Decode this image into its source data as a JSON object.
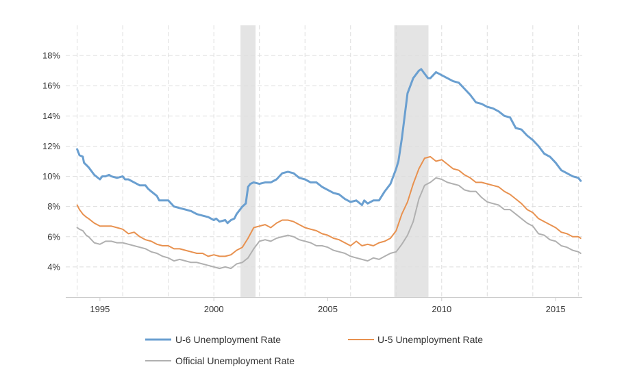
{
  "chart_data": {
    "type": "line",
    "title": "",
    "xlabel": "",
    "ylabel": "",
    "xlim": [
      1993.5,
      2016.17
    ],
    "ylim": [
      2,
      20
    ],
    "x_ticks": [
      1995,
      2000,
      2005,
      2010,
      2015
    ],
    "x_tick_labels": [
      "1995",
      "2000",
      "2005",
      "2010",
      "2015"
    ],
    "x_gridlines": [
      1994,
      1996,
      1998,
      2000,
      2002,
      2004,
      2006,
      2008,
      2010,
      2012,
      2014,
      2016
    ],
    "y_ticks": [
      4,
      6,
      8,
      10,
      12,
      14,
      16,
      18
    ],
    "y_tick_labels": [
      "4%",
      "6%",
      "8%",
      "10%",
      "12%",
      "14%",
      "16%",
      "18%"
    ],
    "y_gridlines": [
      4,
      6,
      8,
      10,
      12,
      14,
      16,
      18
    ],
    "grid": true,
    "grid_color": "#dddddd",
    "recession_color": "#e4e4e4",
    "recessions": [
      [
        2001.17,
        2001.83
      ],
      [
        2007.92,
        2009.42
      ]
    ],
    "legend_position": "bottom",
    "series": [
      {
        "name": "U-6 Unemployment Rate",
        "color": "#6a9fd0",
        "x": [
          1994.0,
          1994.1,
          1994.25,
          1994.3,
          1994.5,
          1994.75,
          1995.0,
          1995.1,
          1995.25,
          1995.4,
          1995.5,
          1995.75,
          1996.0,
          1996.1,
          1996.25,
          1996.5,
          1996.75,
          1997.0,
          1997.1,
          1997.25,
          1997.5,
          1997.6,
          1997.75,
          1998.0,
          1998.25,
          1998.5,
          1998.75,
          1999.0,
          1999.25,
          1999.5,
          1999.75,
          2000.0,
          2000.1,
          2000.25,
          2000.5,
          2000.6,
          2000.75,
          2000.9,
          2001.0,
          2001.25,
          2001.4,
          2001.5,
          2001.6,
          2001.75,
          2002.0,
          2002.25,
          2002.5,
          2002.75,
          2003.0,
          2003.25,
          2003.5,
          2003.75,
          2004.0,
          2004.25,
          2004.5,
          2004.75,
          2005.0,
          2005.25,
          2005.5,
          2005.75,
          2006.0,
          2006.25,
          2006.5,
          2006.6,
          2006.75,
          2007.0,
          2007.25,
          2007.5,
          2007.75,
          2008.0,
          2008.1,
          2008.25,
          2008.5,
          2008.75,
          2009.0,
          2009.1,
          2009.25,
          2009.4,
          2009.5,
          2009.75,
          2010.0,
          2010.25,
          2010.5,
          2010.75,
          2011.0,
          2011.25,
          2011.5,
          2011.75,
          2012.0,
          2012.25,
          2012.5,
          2012.75,
          2013.0,
          2013.25,
          2013.5,
          2013.75,
          2014.0,
          2014.25,
          2014.5,
          2014.75,
          2015.0,
          2015.25,
          2015.5,
          2015.75,
          2016.0,
          2016.1
        ],
        "values": [
          11.8,
          11.4,
          11.3,
          10.9,
          10.6,
          10.1,
          9.8,
          10.0,
          10.0,
          10.1,
          10.0,
          9.9,
          10.0,
          9.8,
          9.8,
          9.6,
          9.4,
          9.4,
          9.2,
          9.0,
          8.7,
          8.4,
          8.4,
          8.4,
          8.0,
          7.9,
          7.8,
          7.7,
          7.5,
          7.4,
          7.3,
          7.1,
          7.2,
          7.0,
          7.1,
          6.9,
          7.1,
          7.2,
          7.5,
          8.0,
          8.2,
          9.3,
          9.5,
          9.6,
          9.5,
          9.6,
          9.6,
          9.8,
          10.2,
          10.3,
          10.2,
          9.9,
          9.8,
          9.6,
          9.6,
          9.3,
          9.1,
          8.9,
          8.8,
          8.5,
          8.3,
          8.4,
          8.1,
          8.4,
          8.2,
          8.4,
          8.4,
          9.0,
          9.5,
          10.5,
          11.0,
          12.5,
          15.5,
          16.5,
          17.0,
          17.1,
          16.8,
          16.5,
          16.5,
          16.9,
          16.7,
          16.5,
          16.3,
          16.2,
          15.8,
          15.4,
          14.9,
          14.8,
          14.6,
          14.5,
          14.3,
          14.0,
          13.9,
          13.2,
          13.1,
          12.7,
          12.4,
          12.0,
          11.5,
          11.3,
          10.9,
          10.4,
          10.2,
          10.0,
          9.9,
          9.7
        ]
      },
      {
        "name": "U-5 Unemployment Rate",
        "color": "#e8914f",
        "x": [
          1994.0,
          1994.1,
          1994.25,
          1994.4,
          1994.5,
          1994.75,
          1995.0,
          1995.25,
          1995.5,
          1995.75,
          1996.0,
          1996.25,
          1996.5,
          1996.75,
          1997.0,
          1997.25,
          1997.5,
          1997.75,
          1998.0,
          1998.25,
          1998.5,
          1998.75,
          1999.0,
          1999.25,
          1999.5,
          1999.75,
          2000.0,
          2000.25,
          2000.5,
          2000.75,
          2001.0,
          2001.25,
          2001.5,
          2001.75,
          2002.0,
          2002.25,
          2002.5,
          2002.75,
          2003.0,
          2003.25,
          2003.5,
          2003.75,
          2004.0,
          2004.25,
          2004.5,
          2004.75,
          2005.0,
          2005.25,
          2005.5,
          2005.75,
          2006.0,
          2006.25,
          2006.5,
          2006.75,
          2007.0,
          2007.25,
          2007.5,
          2007.75,
          2008.0,
          2008.25,
          2008.5,
          2008.75,
          2009.0,
          2009.25,
          2009.5,
          2009.75,
          2010.0,
          2010.25,
          2010.5,
          2010.75,
          2011.0,
          2011.25,
          2011.5,
          2011.75,
          2012.0,
          2012.25,
          2012.5,
          2012.75,
          2013.0,
          2013.25,
          2013.5,
          2013.75,
          2014.0,
          2014.25,
          2014.5,
          2014.75,
          2015.0,
          2015.25,
          2015.5,
          2015.75,
          2016.0,
          2016.1
        ],
        "values": [
          8.1,
          7.8,
          7.5,
          7.3,
          7.2,
          6.9,
          6.7,
          6.7,
          6.7,
          6.6,
          6.5,
          6.2,
          6.3,
          6.0,
          5.8,
          5.7,
          5.5,
          5.4,
          5.4,
          5.2,
          5.2,
          5.1,
          5.0,
          4.9,
          4.9,
          4.7,
          4.8,
          4.7,
          4.7,
          4.8,
          5.1,
          5.3,
          5.9,
          6.6,
          6.7,
          6.8,
          6.6,
          6.9,
          7.1,
          7.1,
          7.0,
          6.8,
          6.6,
          6.5,
          6.4,
          6.2,
          6.1,
          5.9,
          5.8,
          5.6,
          5.4,
          5.7,
          5.4,
          5.5,
          5.4,
          5.6,
          5.7,
          5.9,
          6.4,
          7.5,
          8.3,
          9.5,
          10.5,
          11.2,
          11.3,
          11.0,
          11.1,
          10.8,
          10.5,
          10.4,
          10.1,
          9.9,
          9.6,
          9.6,
          9.5,
          9.4,
          9.3,
          9.0,
          8.8,
          8.5,
          8.2,
          7.8,
          7.6,
          7.2,
          7.0,
          6.8,
          6.6,
          6.3,
          6.2,
          6.0,
          6.0,
          5.9
        ]
      },
      {
        "name": "Official Unemployment Rate",
        "color": "#b0b0b0",
        "x": [
          1994.0,
          1994.1,
          1994.25,
          1994.4,
          1994.5,
          1994.75,
          1995.0,
          1995.25,
          1995.5,
          1995.75,
          1996.0,
          1996.25,
          1996.5,
          1996.75,
          1997.0,
          1997.25,
          1997.5,
          1997.75,
          1998.0,
          1998.25,
          1998.5,
          1998.75,
          1999.0,
          1999.25,
          1999.5,
          1999.75,
          2000.0,
          2000.25,
          2000.5,
          2000.75,
          2001.0,
          2001.25,
          2001.5,
          2001.75,
          2002.0,
          2002.25,
          2002.5,
          2002.75,
          2003.0,
          2003.25,
          2003.5,
          2003.75,
          2004.0,
          2004.25,
          2004.5,
          2004.75,
          2005.0,
          2005.25,
          2005.5,
          2005.75,
          2006.0,
          2006.25,
          2006.5,
          2006.75,
          2007.0,
          2007.25,
          2007.5,
          2007.75,
          2008.0,
          2008.25,
          2008.5,
          2008.75,
          2009.0,
          2009.25,
          2009.5,
          2009.75,
          2010.0,
          2010.25,
          2010.5,
          2010.75,
          2011.0,
          2011.25,
          2011.5,
          2011.75,
          2012.0,
          2012.25,
          2012.5,
          2012.75,
          2013.0,
          2013.25,
          2013.5,
          2013.75,
          2014.0,
          2014.25,
          2014.5,
          2014.75,
          2015.0,
          2015.25,
          2015.5,
          2015.75,
          2016.0,
          2016.1
        ],
        "values": [
          6.6,
          6.5,
          6.4,
          6.1,
          6.0,
          5.6,
          5.5,
          5.7,
          5.7,
          5.6,
          5.6,
          5.5,
          5.4,
          5.3,
          5.2,
          5.0,
          4.9,
          4.7,
          4.6,
          4.4,
          4.5,
          4.4,
          4.3,
          4.3,
          4.2,
          4.1,
          4.0,
          3.9,
          4.0,
          3.9,
          4.2,
          4.3,
          4.6,
          5.2,
          5.7,
          5.8,
          5.7,
          5.9,
          6.0,
          6.1,
          6.0,
          5.8,
          5.7,
          5.6,
          5.4,
          5.4,
          5.3,
          5.1,
          5.0,
          4.9,
          4.7,
          4.6,
          4.5,
          4.4,
          4.6,
          4.5,
          4.7,
          4.9,
          5.0,
          5.5,
          6.1,
          7.0,
          8.5,
          9.4,
          9.6,
          9.9,
          9.8,
          9.6,
          9.5,
          9.4,
          9.1,
          9.0,
          9.0,
          8.6,
          8.3,
          8.2,
          8.1,
          7.8,
          7.8,
          7.5,
          7.2,
          6.9,
          6.7,
          6.2,
          6.1,
          5.8,
          5.7,
          5.4,
          5.3,
          5.1,
          5.0,
          4.9
        ]
      }
    ]
  }
}
